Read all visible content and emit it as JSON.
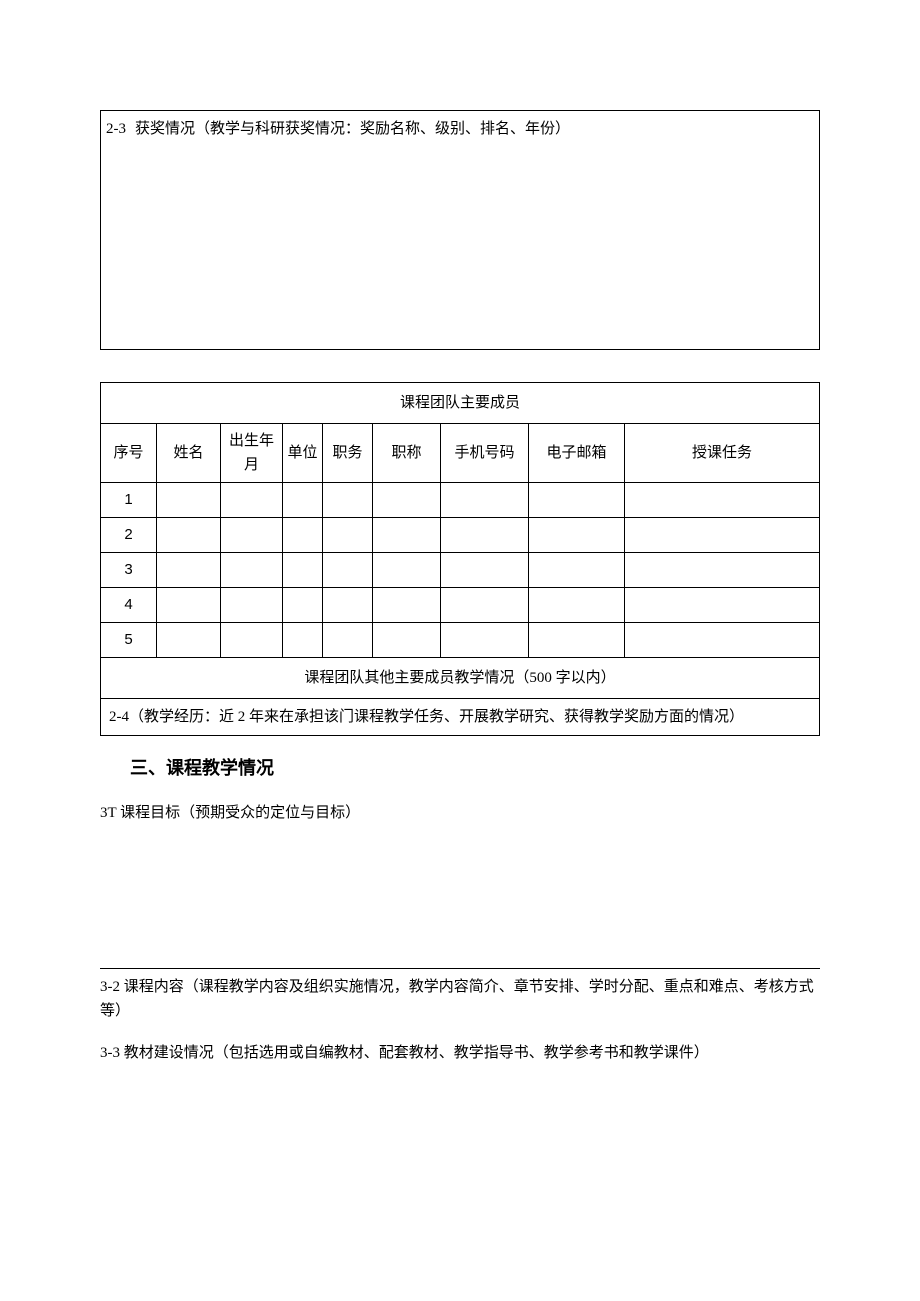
{
  "section23": {
    "number": "2-3",
    "label": "获奖情况（教学与科研获奖情况：奖励名称、级别、排名、年份）"
  },
  "membersTable": {
    "title": "课程团队主要成员",
    "headers": {
      "seq": "序号",
      "name": "姓名",
      "birth": "出生年月",
      "unit": "单位",
      "duty": "职务",
      "title": "职称",
      "phone": "手机号码",
      "email": "电子邮箱",
      "task": "授课任务"
    },
    "rows": [
      "1",
      "2",
      "3",
      "4",
      "5"
    ],
    "subtitle": "课程团队其他主要成员教学情况（500 字以内）"
  },
  "section24": {
    "text": "2-4（教学经历：近 2 年来在承担该门课程教学任务、开展教学研究、获得教学奖励方面的情况）"
  },
  "heading3": "三、课程教学情况",
  "section3t": "3T 课程目标（预期受众的定位与目标）",
  "section32": "3-2 课程内容（课程教学内容及组织实施情况，教学内容简介、章节安排、学时分配、重点和难点、考核方式等）",
  "section33": "3-3 教材建设情况（包括选用或自编教材、配套教材、教学指导书、教学参考书和教学课件）",
  "colors": {
    "text": "#000000",
    "background": "#ffffff",
    "border": "#000000"
  }
}
